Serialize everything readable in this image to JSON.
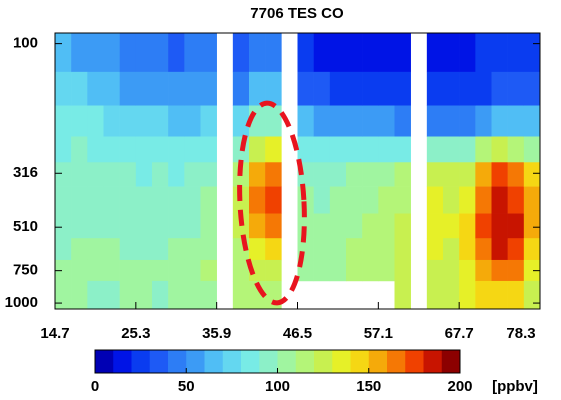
{
  "chart_data": {
    "type": "heatmap",
    "title": "7706 TES CO",
    "x": [
      15.76,
      17.88,
      20.0,
      22.12,
      24.24,
      26.36,
      28.48,
      30.6,
      32.72,
      34.84,
      36.96,
      39.08,
      41.2,
      43.32,
      45.44,
      47.56,
      49.68,
      51.8,
      53.92,
      56.04,
      58.16,
      60.28,
      62.4,
      64.52,
      66.64,
      68.76,
      70.88,
      73.0,
      75.12,
      77.24
    ],
    "y": [
      110,
      150,
      200,
      260,
      316,
      400,
      510,
      620,
      750,
      900
    ],
    "z": [
      [
        60,
        75,
        85,
        88,
        90,
        92,
        95,
        98,
        100,
        100
      ],
      [
        55,
        70,
        85,
        90,
        92,
        95,
        98,
        100,
        102,
        100
      ],
      [
        50,
        65,
        80,
        88,
        92,
        95,
        98,
        100,
        100,
        98
      ],
      [
        50,
        60,
        78,
        88,
        90,
        95,
        98,
        100,
        100,
        98
      ],
      [
        40,
        55,
        75,
        85,
        90,
        92,
        95,
        98,
        100,
        100
      ],
      [
        45,
        55,
        72,
        85,
        88,
        92,
        95,
        98,
        100,
        100
      ],
      [
        40,
        55,
        70,
        82,
        90,
        92,
        95,
        98,
        100,
        98
      ],
      [
        35,
        50,
        65,
        80,
        88,
        92,
        95,
        100,
        102,
        100
      ],
      [
        40,
        50,
        65,
        82,
        90,
        95,
        98,
        102,
        105,
        102
      ],
      [
        45,
        55,
        70,
        85,
        95,
        100,
        105,
        108,
        110,
        105
      ],
      [
        null,
        null,
        null,
        null,
        null,
        null,
        null,
        null,
        null,
        null
      ],
      [
        30,
        45,
        70,
        90,
        110,
        120,
        120,
        118,
        115,
        110
      ],
      [
        40,
        60,
        90,
        120,
        150,
        160,
        150,
        135,
        125,
        115
      ],
      [
        45,
        65,
        95,
        130,
        165,
        170,
        160,
        140,
        125,
        115
      ],
      [
        null,
        null,
        null,
        null,
        null,
        null,
        null,
        null,
        null,
        null
      ],
      [
        20,
        35,
        60,
        85,
        95,
        100,
        100,
        102,
        105,
        null
      ],
      [
        15,
        30,
        55,
        80,
        92,
        98,
        100,
        102,
        105,
        null
      ],
      [
        15,
        25,
        50,
        80,
        95,
        100,
        105,
        105,
        108,
        null
      ],
      [
        15,
        25,
        55,
        85,
        100,
        105,
        108,
        110,
        110,
        null
      ],
      [
        15,
        25,
        55,
        85,
        100,
        108,
        110,
        112,
        115,
        null
      ],
      [
        15,
        25,
        50,
        85,
        105,
        110,
        112,
        115,
        118,
        null
      ],
      [
        15,
        20,
        45,
        85,
        110,
        118,
        120,
        122,
        125,
        125
      ],
      [
        null,
        null,
        null,
        null,
        null,
        null,
        null,
        null,
        null,
        null
      ],
      [
        15,
        20,
        45,
        90,
        120,
        130,
        135,
        130,
        128,
        125
      ],
      [
        15,
        20,
        40,
        90,
        120,
        128,
        130,
        128,
        125,
        122
      ],
      [
        15,
        20,
        40,
        95,
        125,
        135,
        140,
        140,
        138,
        130
      ],
      [
        20,
        25,
        50,
        110,
        150,
        165,
        170,
        165,
        155,
        140
      ],
      [
        20,
        30,
        60,
        120,
        170,
        180,
        185,
        180,
        165,
        145
      ],
      [
        20,
        30,
        60,
        115,
        165,
        178,
        182,
        175,
        160,
        140
      ],
      [
        25,
        35,
        65,
        105,
        140,
        150,
        150,
        145,
        135,
        125
      ]
    ],
    "xlim": [
      14.7,
      78.3
    ],
    "xticks": [
      14.7,
      25.3,
      35.9,
      46.5,
      57.1,
      67.7,
      78.3
    ],
    "ylim": [
      1054,
      91
    ],
    "ylog": true,
    "yticks": [
      100,
      316,
      510,
      750,
      1000
    ],
    "clim": [
      0,
      200
    ],
    "cticks": [
      0,
      50,
      100,
      150,
      200
    ],
    "colorbar_label": "[ppbv]",
    "colormap": [
      "#0000b4",
      "#0014e6",
      "#0a3cf0",
      "#1e5af5",
      "#2d7df5",
      "#3c9bf5",
      "#50bef5",
      "#64d7f0",
      "#78ebe6",
      "#8cf0c8",
      "#a0f5a0",
      "#b4f578",
      "#c8f050",
      "#e6f028",
      "#f5d714",
      "#f5aa0a",
      "#f57805",
      "#f04100",
      "#c81400",
      "#8c0000"
    ]
  }
}
